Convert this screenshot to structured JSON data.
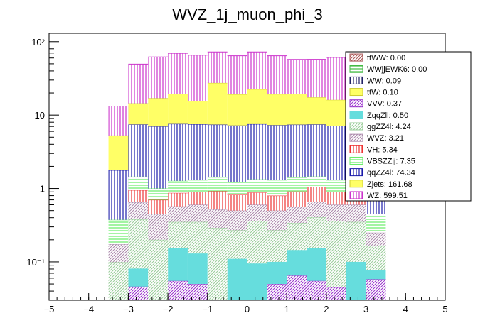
{
  "chart_data": {
    "type": "bar",
    "stacked": true,
    "title": "WVZ_1j_muon_phi_3",
    "xlabel": "",
    "ylabel": "",
    "xlim": [
      -5,
      5
    ],
    "ylim": [
      0.03,
      130
    ],
    "yscale": "log",
    "grid": false,
    "legend_position": "top-right",
    "x_ticks": [
      -5,
      -4,
      -3,
      -2,
      -1,
      0,
      1,
      2,
      3,
      4,
      5
    ],
    "x_tick_labels": [
      "−5",
      "−4",
      "−3",
      "−2",
      "−1",
      "0",
      "1",
      "2",
      "3",
      "4",
      "5"
    ],
    "y_ticks": [
      0.1,
      1,
      10,
      100
    ],
    "y_tick_labels": [
      "10⁻¹",
      "1",
      "10",
      "10²"
    ],
    "bin_edges": [
      -3.5,
      -3.0,
      -2.5,
      -2.0,
      -1.5,
      -1.0,
      -0.5,
      0.0,
      0.5,
      1.0,
      1.5,
      2.0,
      2.5,
      3.0,
      3.5
    ],
    "series_stack_order": [
      "VVV",
      "ZqqZll",
      "ggZZ4l",
      "WVZ",
      "VH",
      "VBSZZjj",
      "qqZZ4l",
      "Zjets",
      "WZ"
    ],
    "series": [
      {
        "name": "VVV",
        "color": "#9933cc",
        "values": [
          0.0,
          0.046,
          0.0,
          0.055,
          0.05,
          0.0,
          0.0,
          0.0,
          0.05,
          0.065,
          0.055,
          0.045,
          0.0,
          0.058
        ]
      },
      {
        "name": "ZqqZll",
        "color": "#66dddd",
        "values": [
          0.0,
          0.035,
          0.0,
          0.1,
          0.08,
          0.0,
          0.11,
          0.095,
          0.05,
          0.08,
          0.1,
          0.0,
          0.1,
          0.02
        ]
      },
      {
        "name": "ggZZ4l",
        "color": "#99cc99",
        "values": [
          0.099,
          0.299,
          0.2,
          0.195,
          0.22,
          0.29,
          0.16,
          0.265,
          0.17,
          0.195,
          0.25,
          0.316,
          0.25,
          0.089
        ]
      },
      {
        "name": "WVZ",
        "color": "#aa88aa",
        "values": [
          0.075,
          0.27,
          0.25,
          0.22,
          0.25,
          0.23,
          0.23,
          0.24,
          0.23,
          0.22,
          0.25,
          0.24,
          0.25,
          0.083
        ]
      },
      {
        "name": "VH",
        "color": "#ee3333",
        "values": [
          0.0,
          0.3,
          0.25,
          0.3,
          0.3,
          0.4,
          0.32,
          0.28,
          0.3,
          0.35,
          0.4,
          0.3,
          0.3,
          0.0
        ]
      },
      {
        "name": "VBSZZjj",
        "color": "#66ee66",
        "values": [
          0.2,
          0.5,
          0.3,
          0.4,
          0.4,
          0.5,
          0.4,
          0.45,
          0.5,
          0.5,
          0.4,
          0.4,
          0.45,
          0.2
        ]
      },
      {
        "name": "qqZZ4l",
        "color": "#1a1aaa",
        "values": [
          1.4,
          6.0,
          6.0,
          6.3,
          6.2,
          6.0,
          6.0,
          6.2,
          6.0,
          6.0,
          6.0,
          5.8,
          6.0,
          1.2
        ]
      },
      {
        "name": "Zjets",
        "color": "#ffff66",
        "values": [
          3.5,
          7.0,
          10.0,
          12.0,
          8.0,
          20.0,
          12.0,
          15.0,
          12.0,
          12.0,
          10.0,
          9.0,
          8.0,
          2.0
        ]
      },
      {
        "name": "WZ",
        "color": "#cc33cc",
        "values": [
          8.0,
          35.0,
          45.0,
          50.0,
          50.0,
          45.0,
          45.0,
          50.0,
          45.0,
          38.0,
          40.0,
          45.0,
          40.0,
          8.0
        ]
      }
    ],
    "legend": [
      {
        "label": "ttWW: 0.00",
        "color": "#aa5555",
        "pattern": "diag"
      },
      {
        "label": "WWjjEWK6: 0.00",
        "color": "#44bb44",
        "pattern": "hline"
      },
      {
        "label": "WW: 0.09",
        "color": "#222266",
        "pattern": "vline"
      },
      {
        "label": "ttW: 0.10",
        "color": "#ffff66",
        "pattern": "solid"
      },
      {
        "label": "VVV: 0.37",
        "color": "#9933cc",
        "pattern": "diag"
      },
      {
        "label": "ZqqZll: 0.50",
        "color": "#66dddd",
        "pattern": "solid"
      },
      {
        "label": "ggZZ4l: 4.24",
        "color": "#99cc99",
        "pattern": "diag"
      },
      {
        "label": "WVZ: 3.21",
        "color": "#aa88aa",
        "pattern": "diag"
      },
      {
        "label": "VH: 5.34",
        "color": "#ee3333",
        "pattern": "vline"
      },
      {
        "label": "VBSZZjj: 7.35",
        "color": "#66ee66",
        "pattern": "hline"
      },
      {
        "label": "qqZZ4l: 74.34",
        "color": "#1a1aaa",
        "pattern": "vline"
      },
      {
        "label": "Zjets: 161.68",
        "color": "#ffff66",
        "pattern": "solid"
      },
      {
        "label": "WZ: 599.51",
        "color": "#cc33cc",
        "pattern": "vline"
      }
    ]
  }
}
